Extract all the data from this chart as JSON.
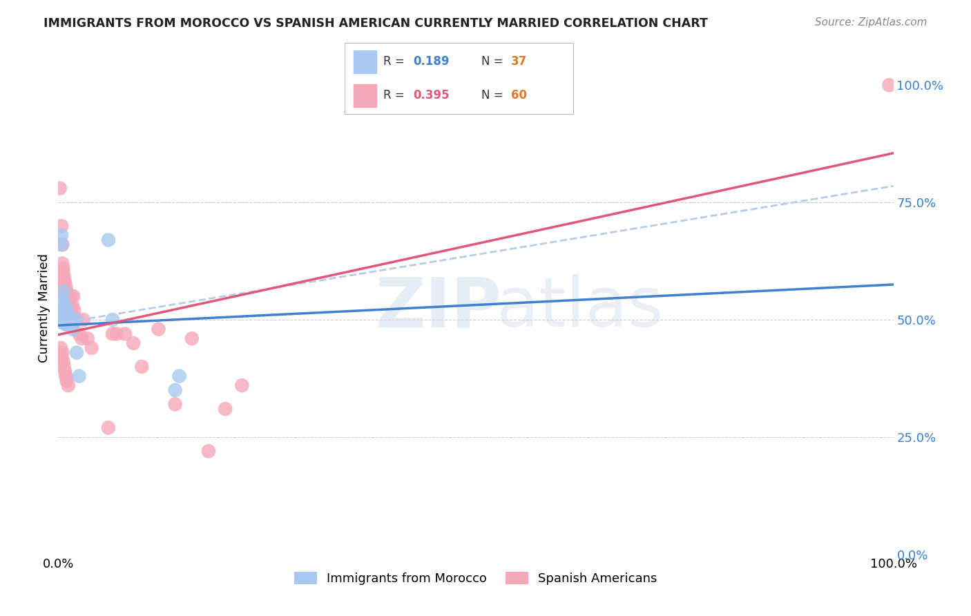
{
  "title": "IMMIGRANTS FROM MOROCCO VS SPANISH AMERICAN CURRENTLY MARRIED CORRELATION CHART",
  "source": "Source: ZipAtlas.com",
  "ylabel": "Currently Married",
  "xlim": [
    0.0,
    1.0
  ],
  "ylim": [
    0.0,
    1.05
  ],
  "legend1_R": "0.189",
  "legend1_N": "37",
  "legend2_R": "0.395",
  "legend2_N": "60",
  "blue_color": "#a8c8f0",
  "pink_color": "#f5a8b8",
  "blue_line_color": "#4080d0",
  "pink_line_color": "#e05878",
  "dashed_line_color": "#b8cce8",
  "watermark_zip": "ZIP",
  "watermark_atlas": "atlas",
  "blue_line_x0": 0.0,
  "blue_line_y0": 0.488,
  "blue_line_x1": 1.0,
  "blue_line_y1": 0.575,
  "pink_line_x0": 0.0,
  "pink_line_y0": 0.468,
  "pink_line_x1": 1.0,
  "pink_line_y1": 0.855,
  "dash_line_x0": 0.0,
  "dash_line_y0": 0.492,
  "dash_line_x1": 1.0,
  "dash_line_y1": 0.785,
  "scatter_blue_x": [
    0.002,
    0.004,
    0.004,
    0.005,
    0.005,
    0.006,
    0.006,
    0.007,
    0.007,
    0.007,
    0.008,
    0.008,
    0.008,
    0.009,
    0.009,
    0.009,
    0.009,
    0.01,
    0.01,
    0.01,
    0.01,
    0.011,
    0.011,
    0.012,
    0.012,
    0.013,
    0.015,
    0.016,
    0.017,
    0.018,
    0.02,
    0.022,
    0.025,
    0.06,
    0.065,
    0.14,
    0.145
  ],
  "scatter_blue_y": [
    0.495,
    0.68,
    0.66,
    0.52,
    0.5,
    0.56,
    0.54,
    0.53,
    0.52,
    0.51,
    0.53,
    0.52,
    0.51,
    0.52,
    0.51,
    0.5,
    0.49,
    0.52,
    0.51,
    0.5,
    0.49,
    0.51,
    0.5,
    0.5,
    0.49,
    0.5,
    0.5,
    0.49,
    0.48,
    0.5,
    0.5,
    0.43,
    0.38,
    0.67,
    0.5,
    0.35,
    0.38
  ],
  "scatter_pink_x": [
    0.002,
    0.003,
    0.004,
    0.005,
    0.005,
    0.006,
    0.006,
    0.007,
    0.007,
    0.007,
    0.008,
    0.008,
    0.008,
    0.009,
    0.009,
    0.009,
    0.01,
    0.01,
    0.01,
    0.011,
    0.011,
    0.012,
    0.012,
    0.013,
    0.014,
    0.015,
    0.015,
    0.016,
    0.017,
    0.018,
    0.019,
    0.02,
    0.022,
    0.025,
    0.028,
    0.03,
    0.035,
    0.04,
    0.06,
    0.065,
    0.07,
    0.08,
    0.09,
    0.1,
    0.12,
    0.14,
    0.16,
    0.18,
    0.2,
    0.22,
    0.003,
    0.004,
    0.005,
    0.006,
    0.007,
    0.008,
    0.009,
    0.01,
    0.012,
    0.995
  ],
  "scatter_pink_y": [
    0.78,
    0.57,
    0.7,
    0.66,
    0.62,
    0.61,
    0.6,
    0.59,
    0.58,
    0.57,
    0.58,
    0.56,
    0.55,
    0.57,
    0.55,
    0.54,
    0.56,
    0.54,
    0.53,
    0.55,
    0.54,
    0.55,
    0.53,
    0.54,
    0.52,
    0.55,
    0.52,
    0.51,
    0.53,
    0.55,
    0.52,
    0.5,
    0.5,
    0.47,
    0.46,
    0.5,
    0.46,
    0.44,
    0.27,
    0.47,
    0.47,
    0.47,
    0.45,
    0.4,
    0.48,
    0.32,
    0.46,
    0.22,
    0.31,
    0.36,
    0.44,
    0.42,
    0.43,
    0.41,
    0.4,
    0.39,
    0.38,
    0.37,
    0.36,
    1.0
  ],
  "background_color": "#ffffff",
  "grid_color": "#cccccc"
}
